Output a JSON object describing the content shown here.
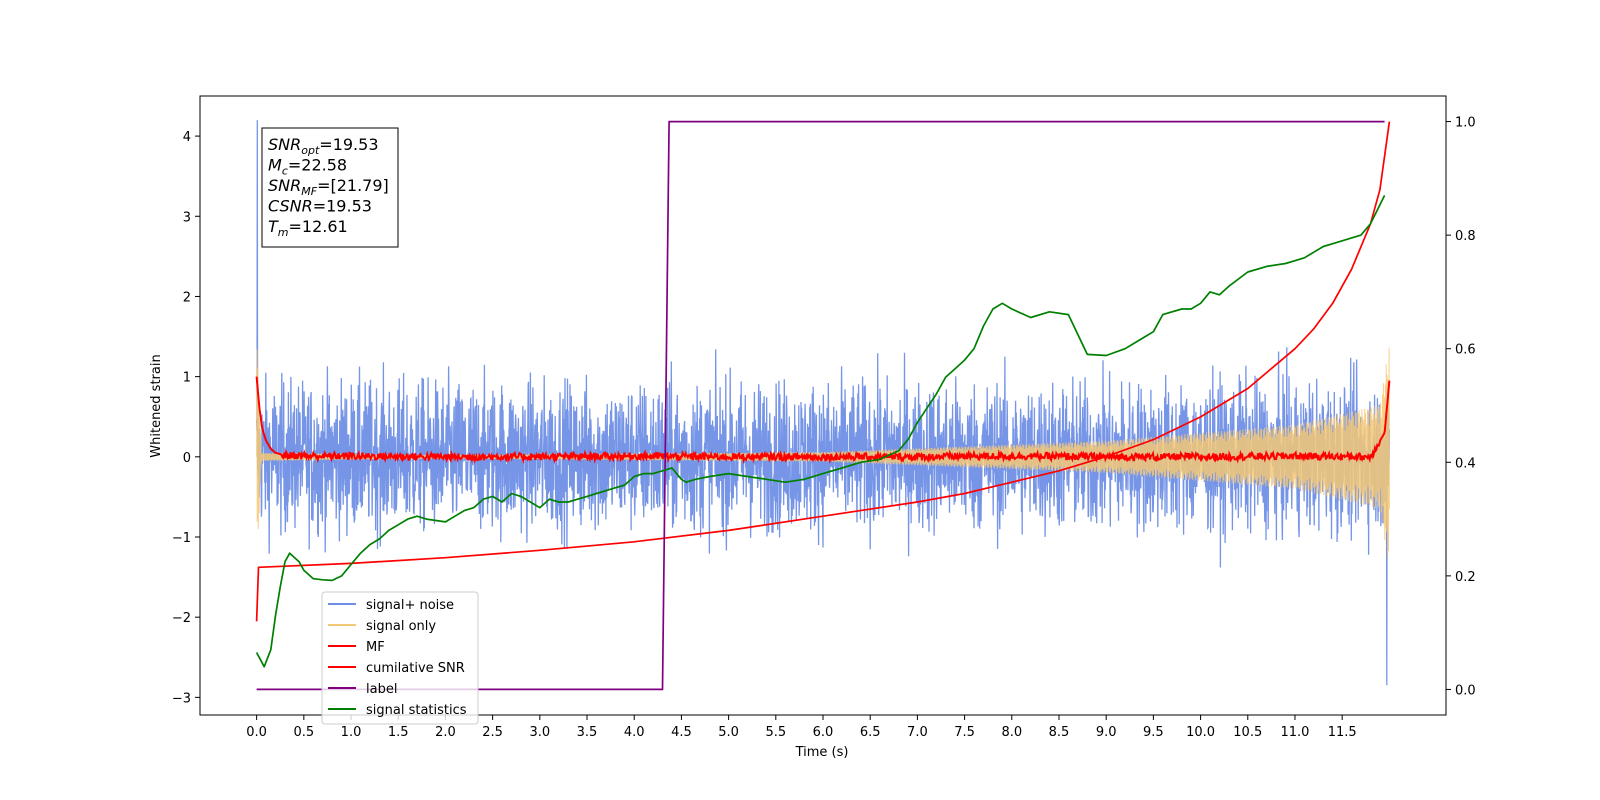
{
  "chart_data": {
    "type": "line",
    "xlabel": "Time (s)",
    "ylabel": "Whitened strain",
    "xlim": [
      -0.6,
      12.6
    ],
    "ylim": [
      -3.22,
      4.5
    ],
    "y2lim": [
      -0.045,
      1.045
    ],
    "grid": false,
    "x_ticks": [
      0.0,
      0.5,
      1.0,
      1.5,
      2.0,
      2.5,
      3.0,
      3.5,
      4.0,
      4.5,
      5.0,
      5.5,
      6.0,
      6.5,
      7.0,
      7.5,
      8.0,
      8.5,
      9.0,
      9.5,
      10.0,
      10.5,
      11.0,
      11.5
    ],
    "x_tick_labels": [
      "0.0",
      "0.5",
      "1.0",
      "1.5",
      "2.0",
      "2.5",
      "3.0",
      "3.5",
      "4.0",
      "4.5",
      "5.0",
      "5.5",
      "6.0",
      "6.5",
      "7.0",
      "7.5",
      "8.0",
      "8.5",
      "9.0",
      "9.5",
      "10.0",
      "10.5",
      "11.0",
      "11.5"
    ],
    "y_ticks": [
      -3,
      -2,
      -1,
      0,
      1,
      2,
      3,
      4
    ],
    "y_tick_labels": [
      "−3",
      "−2",
      "−1",
      "0",
      "1",
      "2",
      "3",
      "4"
    ],
    "y2_ticks": [
      0.0,
      0.2,
      0.4,
      0.6,
      0.8,
      1.0
    ],
    "y2_tick_labels": [
      "0.0",
      "0.2",
      "0.4",
      "0.6",
      "0.8",
      "1.0"
    ],
    "legend": {
      "placement": "lower-left",
      "entries": [
        {
          "label": "signal+ noise",
          "color": "#6f8fe6"
        },
        {
          "label": "signal only",
          "color": "#f5c877"
        },
        {
          "label": "MF",
          "color": "#ff0000"
        },
        {
          "label": "cumilative SNR",
          "color": "#ff0000"
        },
        {
          "label": "label",
          "color": "#800080"
        },
        {
          "label": "signal statistics",
          "color": "#008000"
        }
      ]
    },
    "annotation": {
      "placement": "top-left",
      "lines": [
        {
          "sym": "SNR",
          "sub": "opt",
          "value": "=19.53"
        },
        {
          "sym": "M",
          "sub": "c",
          "value": "=22.58"
        },
        {
          "sym": "SNR",
          "sub": "MF",
          "value": "=[21.79]"
        },
        {
          "sym": "CSNR",
          "sub": "",
          "value": "=19.53"
        },
        {
          "sym": "T",
          "sub": "m",
          "value": "=12.61"
        }
      ]
    },
    "series": [
      {
        "name": "signal+ noise",
        "axis": "left",
        "color": "#6f8fe6",
        "noise_envelope": {
          "x": [
            0,
            12
          ],
          "typical_amplitude": 0.75,
          "max_amplitude": 2.3,
          "start_spike": 4.2,
          "end_dip": -2.85
        }
      },
      {
        "name": "signal only",
        "axis": "left",
        "color": "#f5c877",
        "amplitude_envelope": {
          "x": [
            0.0,
            0.05,
            2.0,
            6.0,
            9.0,
            11.0,
            11.9,
            12.0
          ],
          "amp": [
            1.5,
            0.05,
            0.02,
            0.06,
            0.2,
            0.4,
            0.65,
            1.4
          ]
        }
      },
      {
        "name": "MF",
        "axis": "left",
        "color": "#ff0000",
        "x": [
          0.0,
          0.03,
          0.06,
          0.1,
          0.15,
          0.2,
          0.3,
          0.5,
          1.0,
          2.0,
          3.0,
          4.0,
          5.0,
          6.0,
          7.0,
          8.0,
          9.0,
          10.0,
          11.0,
          11.8,
          11.95,
          12.0
        ],
        "y": [
          1.0,
          0.6,
          0.35,
          0.2,
          0.1,
          0.05,
          0.02,
          0.01,
          0.01,
          0.0,
          0.0,
          0.01,
          0.0,
          0.0,
          0.0,
          0.01,
          0.0,
          0.0,
          0.01,
          0.0,
          0.3,
          0.95
        ]
      },
      {
        "name": "cumilative SNR",
        "axis": "right",
        "color": "#ff0000",
        "x": [
          0.0,
          0.02,
          1.0,
          2.0,
          3.0,
          4.0,
          5.0,
          6.0,
          7.0,
          7.5,
          8.0,
          8.5,
          9.0,
          9.5,
          10.0,
          10.5,
          11.0,
          11.2,
          11.4,
          11.6,
          11.8,
          11.9,
          12.0
        ],
        "y": [
          0.12,
          0.215,
          0.222,
          0.232,
          0.245,
          0.26,
          0.28,
          0.305,
          0.33,
          0.345,
          0.365,
          0.385,
          0.41,
          0.44,
          0.48,
          0.53,
          0.6,
          0.635,
          0.68,
          0.74,
          0.82,
          0.88,
          1.0
        ]
      },
      {
        "name": "label",
        "axis": "right",
        "color": "#800080",
        "x": [
          0.0,
          4.3,
          4.37,
          11.95
        ],
        "y": [
          0.0,
          0.0,
          1.0,
          1.0
        ]
      },
      {
        "name": "signal statistics",
        "axis": "right",
        "color": "#008000",
        "x": [
          0.0,
          0.08,
          0.15,
          0.2,
          0.25,
          0.3,
          0.35,
          0.45,
          0.5,
          0.6,
          0.7,
          0.8,
          0.9,
          1.0,
          1.1,
          1.2,
          1.3,
          1.4,
          1.5,
          1.6,
          1.7,
          1.8,
          2.0,
          2.1,
          2.2,
          2.3,
          2.4,
          2.5,
          2.6,
          2.7,
          2.8,
          2.9,
          3.0,
          3.1,
          3.2,
          3.3,
          3.4,
          3.5,
          3.6,
          3.7,
          3.8,
          3.9,
          4.0,
          4.1,
          4.2,
          4.3,
          4.4,
          4.5,
          4.55,
          4.65,
          4.8,
          5.0,
          5.2,
          5.4,
          5.6,
          5.8,
          6.0,
          6.2,
          6.4,
          6.6,
          6.8,
          6.9,
          7.0,
          7.1,
          7.2,
          7.3,
          7.4,
          7.5,
          7.6,
          7.7,
          7.8,
          7.9,
          8.0,
          8.2,
          8.4,
          8.6,
          8.8,
          9.0,
          9.2,
          9.4,
          9.5,
          9.6,
          9.8,
          9.9,
          10.0,
          10.1,
          10.2,
          10.3,
          10.5,
          10.7,
          10.9,
          11.0,
          11.1,
          11.2,
          11.3,
          11.4,
          11.5,
          11.7,
          11.8,
          11.95
        ],
        "y": [
          0.065,
          0.04,
          0.07,
          0.13,
          0.18,
          0.225,
          0.24,
          0.225,
          0.21,
          0.195,
          0.193,
          0.192,
          0.2,
          0.22,
          0.24,
          0.255,
          0.265,
          0.28,
          0.29,
          0.3,
          0.305,
          0.3,
          0.295,
          0.305,
          0.315,
          0.32,
          0.335,
          0.34,
          0.33,
          0.345,
          0.34,
          0.33,
          0.32,
          0.335,
          0.33,
          0.33,
          0.335,
          0.34,
          0.345,
          0.35,
          0.355,
          0.36,
          0.375,
          0.38,
          0.38,
          0.385,
          0.39,
          0.37,
          0.365,
          0.37,
          0.375,
          0.38,
          0.375,
          0.37,
          0.365,
          0.37,
          0.38,
          0.39,
          0.4,
          0.405,
          0.42,
          0.44,
          0.47,
          0.495,
          0.52,
          0.55,
          0.565,
          0.58,
          0.6,
          0.64,
          0.67,
          0.68,
          0.67,
          0.655,
          0.665,
          0.66,
          0.59,
          0.588,
          0.6,
          0.62,
          0.63,
          0.66,
          0.67,
          0.67,
          0.68,
          0.7,
          0.695,
          0.71,
          0.735,
          0.745,
          0.75,
          0.755,
          0.76,
          0.77,
          0.78,
          0.785,
          0.79,
          0.8,
          0.82,
          0.87
        ]
      }
    ]
  }
}
